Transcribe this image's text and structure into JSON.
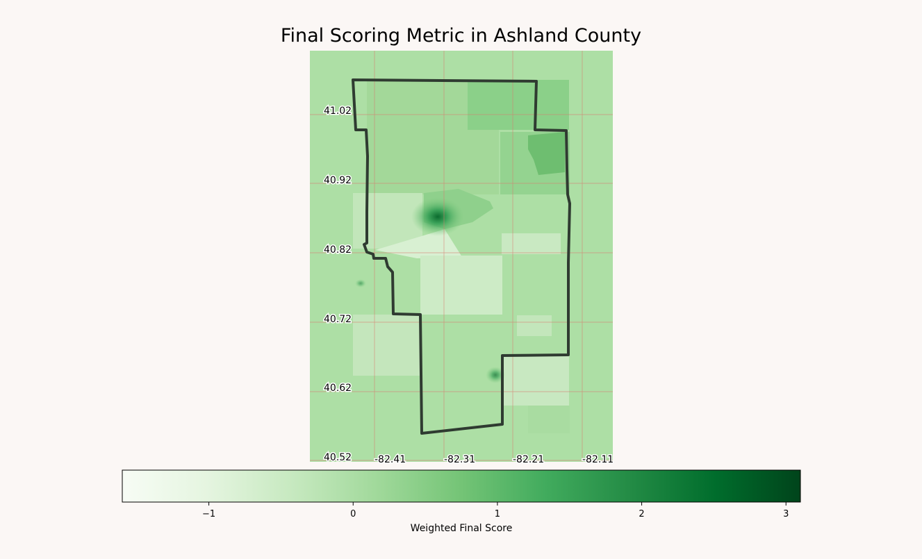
{
  "title": "Final Scoring Metric in Ashland County",
  "map": {
    "lat_labels": [
      "41.02",
      "40.92",
      "40.82",
      "40.72",
      "40.62",
      "40.52"
    ],
    "lon_labels": [
      "-82.41",
      "-82.31",
      "-82.21",
      "-82.11"
    ],
    "border_color": "#2f3b31",
    "gridline_color": "#d97a6e"
  },
  "colorbar": {
    "label": "Weighted Final Score",
    "min": -1.6,
    "max": 3.1,
    "ticks": [
      "−1",
      "0",
      "1",
      "2",
      "3"
    ],
    "tick_values": [
      -1,
      0,
      1,
      2,
      3
    ],
    "colormap": "Greens"
  }
}
